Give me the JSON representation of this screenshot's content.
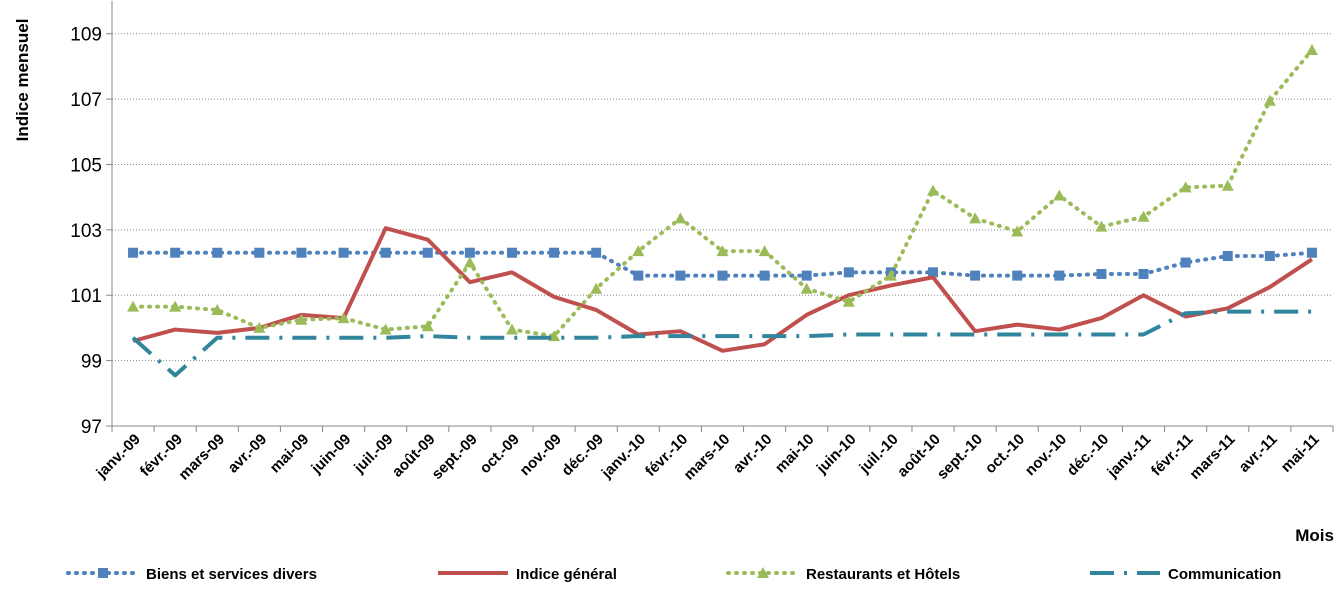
{
  "chart_data": {
    "type": "line",
    "y_label": "Indice mensuel",
    "x_label": "Mois",
    "categories": [
      "janv.-09",
      "févr.-09",
      "mars-09",
      "avr.-09",
      "mai-09",
      "juin-09",
      "juil.-09",
      "août-09",
      "sept.-09",
      "oct.-09",
      "nov.-09",
      "déc.-09",
      "janv.-10",
      "févr.-10",
      "mars-10",
      "avr.-10",
      "mai-10",
      "juin-10",
      "juil.-10",
      "août-10",
      "sept.-10",
      "oct.-10",
      "nov.-10",
      "déc.-10",
      "janv.-11",
      "févr.-11",
      "mars-11",
      "avr.-11",
      "mai-11"
    ],
    "series": [
      {
        "name": "Biens et services divers",
        "color": "#4f81bd",
        "values": [
          102.3,
          102.3,
          102.3,
          102.3,
          102.3,
          102.3,
          102.3,
          102.3,
          102.3,
          102.3,
          102.3,
          102.3,
          101.6,
          101.6,
          101.6,
          101.6,
          101.6,
          101.7,
          101.7,
          101.7,
          101.6,
          101.6,
          101.6,
          101.65,
          101.65,
          102.0,
          102.2,
          102.2,
          102.3
        ]
      },
      {
        "name": "Indice général",
        "color": "#c0504d",
        "values": [
          99.6,
          99.95,
          99.85,
          100.0,
          100.4,
          100.3,
          103.05,
          102.7,
          101.4,
          101.7,
          100.95,
          100.55,
          99.8,
          99.9,
          99.3,
          99.5,
          100.4,
          101.0,
          101.3,
          101.55,
          99.9,
          100.1,
          99.95,
          100.3,
          101.0,
          100.35,
          100.6,
          101.25,
          102.1
        ]
      },
      {
        "name": "Restaurants et Hôtels",
        "color": "#9bbb59",
        "values": [
          100.65,
          100.65,
          100.55,
          100.0,
          100.25,
          100.3,
          99.95,
          100.05,
          102.0,
          99.95,
          99.75,
          101.2,
          102.35,
          103.35,
          102.35,
          102.35,
          101.2,
          100.8,
          101.6,
          104.2,
          103.35,
          102.95,
          104.05,
          103.1,
          103.4,
          104.3,
          104.35,
          106.95,
          108.5
        ]
      },
      {
        "name": "Communication",
        "color": "#31859c",
        "values": [
          99.7,
          98.55,
          99.7,
          99.7,
          99.7,
          99.7,
          99.7,
          99.75,
          99.7,
          99.7,
          99.7,
          99.7,
          99.75,
          99.75,
          99.75,
          99.75,
          99.75,
          99.8,
          99.8,
          99.8,
          99.8,
          99.8,
          99.8,
          99.8,
          99.8,
          100.45,
          100.5,
          100.5,
          100.5
        ]
      }
    ],
    "ylim": [
      97,
      110
    ],
    "yticks": [
      97,
      99,
      101,
      103,
      105,
      107,
      109
    ],
    "grid": true,
    "legend": "bottom"
  }
}
